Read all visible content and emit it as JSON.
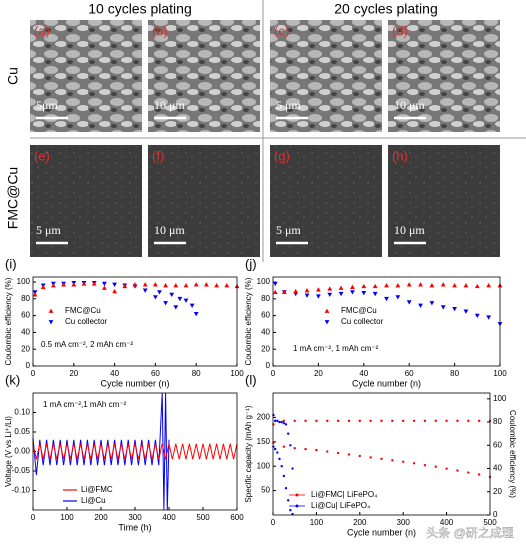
{
  "column_titles": [
    "10 cycles plating",
    "20 cycles plating"
  ],
  "row_labels": [
    "Cu",
    "FMC@Cu"
  ],
  "images": [
    {
      "label": "(a)",
      "scale": "5μm"
    },
    {
      "label": "(b)",
      "scale": "10 μm"
    },
    {
      "label": "(c)",
      "scale": "5 μm"
    },
    {
      "label": "(d)",
      "scale": "10 μm"
    },
    {
      "label": "(e)",
      "scale": "5 μm"
    },
    {
      "label": "(f)",
      "scale": "10 μm"
    },
    {
      "label": "(g)",
      "scale": "5 μm"
    },
    {
      "label": "(h)",
      "scale": "10 μm"
    }
  ],
  "watermark": "头条 @研之成理",
  "chart_data": [
    {
      "type": "scatter",
      "panel": "(i)",
      "xlabel": "Cycle number (n)",
      "ylabel": "Coulombic efficiency (%)",
      "annotation": "0.5 mA cm⁻², 2 mAh cm⁻²",
      "legend": "center left",
      "xlim": [
        0,
        100
      ],
      "xticks": [
        0,
        20,
        40,
        60,
        80,
        100
      ],
      "ylim": [
        0,
        106
      ],
      "yticks": [
        0,
        20,
        40,
        60,
        80,
        100
      ],
      "series": [
        {
          "name": "FMC@Cu",
          "color": "#ff0000",
          "marker": "triangle-up",
          "x": [
            1,
            5,
            10,
            15,
            20,
            25,
            30,
            35,
            40,
            45,
            50,
            55,
            60,
            65,
            70,
            75,
            80,
            85,
            90,
            95,
            100
          ],
          "values": [
            85,
            94,
            96,
            97,
            97,
            98,
            98,
            93,
            89,
            95,
            97,
            97,
            97,
            96,
            96,
            96,
            97,
            97,
            96,
            96,
            95
          ]
        },
        {
          "name": "Cu collector",
          "color": "#0000ff",
          "marker": "triangle-down",
          "x": [
            1,
            5,
            10,
            15,
            20,
            25,
            30,
            35,
            40,
            45,
            50,
            55,
            60,
            62,
            65,
            68,
            70,
            72,
            75,
            78,
            80
          ],
          "values": [
            88,
            96,
            98,
            98,
            99,
            99,
            99,
            98,
            97,
            96,
            95,
            90,
            82,
            88,
            75,
            85,
            70,
            80,
            78,
            72,
            62
          ]
        }
      ]
    },
    {
      "type": "scatter",
      "panel": "(j)",
      "xlabel": "Cycle number (n)",
      "ylabel": "Coulombic efficiency (%)",
      "annotation": "1 mA cm⁻², 1 mAh cm⁻²",
      "legend": "center left",
      "xlim": [
        0,
        100
      ],
      "xticks": [
        0,
        20,
        40,
        60,
        80,
        100
      ],
      "ylim": [
        0,
        106
      ],
      "yticks": [
        0,
        20,
        40,
        60,
        80,
        100
      ],
      "series": [
        {
          "name": "FMC@Cu",
          "color": "#ff0000",
          "marker": "triangle-up",
          "x": [
            1,
            5,
            10,
            15,
            20,
            25,
            30,
            35,
            40,
            45,
            50,
            55,
            60,
            65,
            70,
            75,
            80,
            85,
            90,
            95,
            100
          ],
          "values": [
            88,
            88,
            89,
            90,
            91,
            92,
            93,
            94,
            95,
            95,
            96,
            96,
            97,
            97,
            96,
            97,
            96,
            96,
            95,
            96,
            96
          ]
        },
        {
          "name": "Cu collector",
          "color": "#0000ff",
          "marker": "triangle-down",
          "x": [
            1,
            5,
            10,
            15,
            20,
            25,
            30,
            35,
            40,
            45,
            50,
            55,
            60,
            65,
            70,
            75,
            80,
            85,
            90,
            95,
            100
          ],
          "values": [
            98,
            88,
            86,
            84,
            83,
            85,
            86,
            88,
            87,
            86,
            80,
            82,
            76,
            72,
            75,
            70,
            68,
            65,
            60,
            58,
            50
          ]
        }
      ]
    },
    {
      "type": "line",
      "panel": "(k)",
      "xlabel": "Time (h)",
      "ylabel": "Voltage (V vs Li⁺/Li)",
      "annotation": "1 mA cm⁻²,1 mAh cm⁻²",
      "legend": "lower left",
      "xlim": [
        0,
        600
      ],
      "xticks": [
        0,
        100,
        200,
        300,
        400,
        500,
        600
      ],
      "ylim": [
        -0.15,
        0.15
      ],
      "yticks": [
        {
          "value": -0.1,
          "label": "-0.10"
        },
        -0.05,
        {
          "value": 0,
          "label": "0.00"
        },
        0.05,
        {
          "value": 0.1,
          "label": "0.10"
        }
      ],
      "series": [
        {
          "name": "Li@FMC",
          "color": "#ff0000",
          "x": [
            0,
            10,
            20,
            30,
            40,
            50,
            60,
            70,
            80,
            90,
            100,
            110,
            120,
            130,
            140,
            150,
            160,
            170,
            180,
            190,
            200,
            210,
            220,
            230,
            240,
            250,
            260,
            270,
            280,
            290,
            300,
            310,
            320,
            330,
            340,
            350,
            360,
            370,
            380,
            390,
            400,
            410,
            420,
            430,
            440,
            450,
            460,
            470,
            480,
            490,
            500,
            510,
            520,
            530,
            540,
            550,
            560,
            570,
            580,
            590,
            600
          ],
          "values": [
            0.02,
            -0.02,
            0.02,
            -0.02,
            0.02,
            -0.02,
            0.02,
            -0.02,
            0.02,
            -0.02,
            0.02,
            -0.02,
            0.02,
            -0.02,
            0.02,
            -0.02,
            0.02,
            -0.02,
            0.02,
            -0.02,
            0.02,
            -0.02,
            0.02,
            -0.02,
            0.02,
            -0.02,
            0.02,
            -0.02,
            0.02,
            -0.02,
            0.02,
            -0.02,
            0.02,
            -0.02,
            0.02,
            -0.02,
            0.02,
            -0.02,
            0.02,
            -0.02,
            0.02,
            -0.02,
            0.02,
            -0.02,
            0.02,
            -0.02,
            0.02,
            -0.02,
            0.02,
            -0.02,
            0.02,
            -0.02,
            0.02,
            -0.02,
            0.02,
            -0.02,
            0.02,
            -0.02,
            0.02,
            -0.02,
            0.02
          ]
        },
        {
          "name": "Li@Cu",
          "color": "#0000ff",
          "x": [
            0,
            10,
            20,
            30,
            40,
            50,
            60,
            70,
            80,
            90,
            100,
            110,
            120,
            130,
            140,
            150,
            160,
            170,
            180,
            190,
            200,
            210,
            220,
            230,
            240,
            250,
            260,
            270,
            280,
            290,
            300,
            310,
            320,
            330,
            340,
            350,
            360,
            370,
            380,
            385,
            390,
            395,
            400
          ],
          "values": [
            0.035,
            -0.06,
            0.03,
            -0.035,
            0.03,
            -0.035,
            0.03,
            -0.035,
            0.03,
            -0.035,
            0.03,
            -0.035,
            0.03,
            -0.035,
            0.03,
            -0.035,
            0.03,
            -0.035,
            0.03,
            -0.035,
            0.03,
            -0.035,
            0.03,
            -0.035,
            0.03,
            -0.035,
            0.03,
            -0.035,
            0.03,
            -0.035,
            0.03,
            -0.035,
            0.03,
            -0.035,
            0.03,
            -0.035,
            0.03,
            -0.035,
            0.15,
            -0.15,
            0.15,
            -0.15,
            0.03
          ]
        }
      ]
    },
    {
      "type": "scatter",
      "panel": "(l)",
      "xlabel": "Cycle number (n)",
      "ylabel": "Specific capacity (mAh g⁻¹)",
      "y2label": "Coulombic efficiency (%)",
      "legend": "lower left",
      "xlim": [
        0,
        500
      ],
      "xticks": [
        0,
        100,
        200,
        300,
        400,
        500
      ],
      "ylim": [
        0,
        250
      ],
      "yticks": [
        50,
        100,
        150,
        200
      ],
      "y2lim": [
        0,
        105
      ],
      "y2ticks": [
        0,
        20,
        40,
        60,
        80,
        100
      ],
      "series": [
        {
          "name": "Li@FMC| LiFePO₄",
          "color": "#ff0000",
          "marker": "circle",
          "x": [
            1,
            25,
            50,
            75,
            100,
            125,
            150,
            175,
            200,
            225,
            250,
            275,
            300,
            325,
            350,
            375,
            400,
            425,
            450,
            475,
            500
          ],
          "values": [
            148,
            140,
            137,
            135,
            133,
            130,
            127,
            124,
            121,
            118,
            115,
            112,
            109,
            106,
            102,
            99,
            95,
            91,
            87,
            83,
            78
          ]
        },
        {
          "name": "Li@Cu| LiFePO₄",
          "color": "#0000ff",
          "marker": "circle",
          "x": [
            1,
            5,
            10,
            15,
            20,
            25,
            30,
            35,
            40,
            45
          ],
          "values": [
            140,
            135,
            128,
            115,
            100,
            80,
            55,
            30,
            10,
            2
          ]
        },
        {
          "color": "#ff0000",
          "marker": "circle",
          "axis": "y2",
          "x": [
            1,
            25,
            50,
            75,
            100,
            125,
            150,
            175,
            200,
            225,
            250,
            275,
            300,
            325,
            350,
            375,
            400,
            425,
            450,
            475,
            500
          ],
          "values": [
            78,
            81,
            81,
            81,
            81,
            81,
            81,
            81,
            81,
            81,
            81,
            81,
            81,
            81,
            81,
            81,
            81,
            81,
            81,
            81,
            81
          ]
        },
        {
          "color": "#0000ff",
          "marker": "circle",
          "axis": "y2",
          "x": [
            1,
            5,
            10,
            15,
            20,
            25,
            30,
            35,
            40,
            45
          ],
          "values": [
            86,
            81,
            81,
            80,
            80,
            79,
            78,
            70,
            60,
            40
          ]
        }
      ]
    }
  ]
}
